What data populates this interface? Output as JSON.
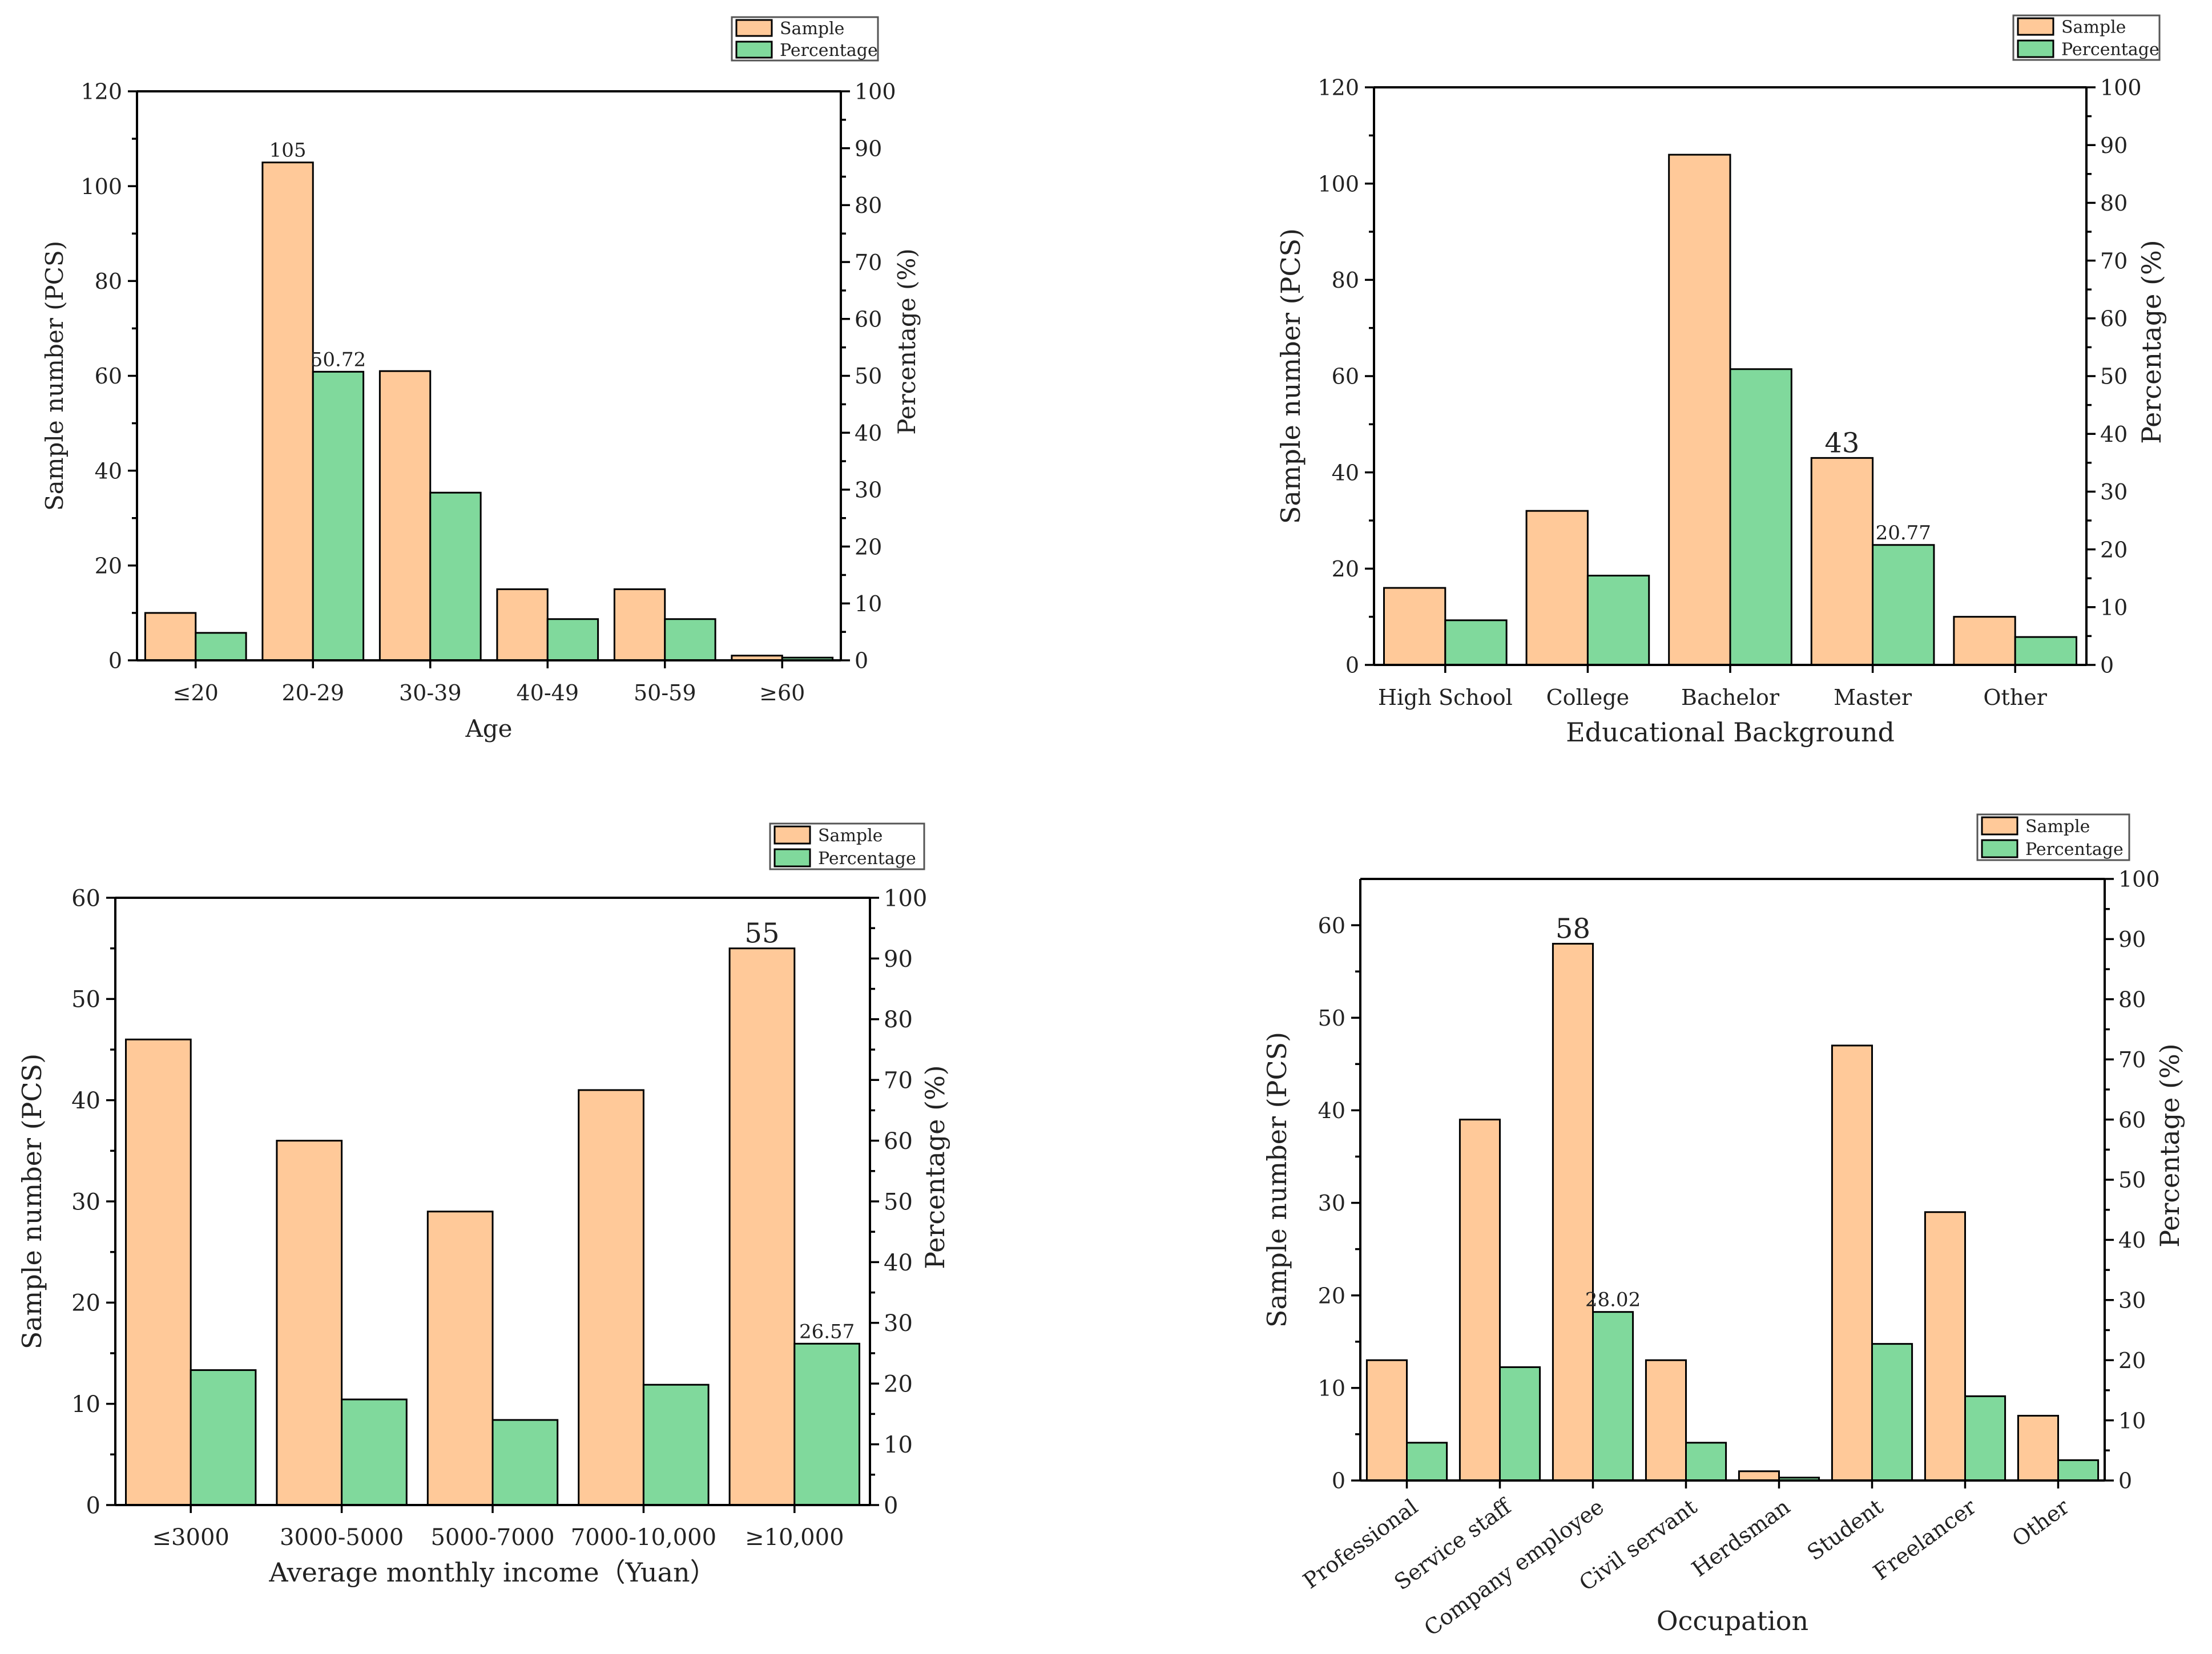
{
  "colors": {
    "sample": "#FFC999",
    "percentage": "#80D99C",
    "axis": "#000000"
  },
  "chart_data": [
    {
      "type": "bar",
      "title": "",
      "xlabel": "Age",
      "ylabel": "Sample number (PCS)",
      "y2label": "Percentage (%)",
      "categories": [
        "≤20",
        "20-29",
        "30-39",
        "40-49",
        "50-59",
        "≥60"
      ],
      "ylim": [
        0,
        120
      ],
      "y2lim": [
        0,
        100
      ],
      "yticks": [
        0,
        20,
        40,
        60,
        80,
        100,
        120
      ],
      "y2ticks": [
        0,
        10,
        20,
        30,
        40,
        50,
        60,
        70,
        80,
        90,
        100
      ],
      "series": [
        {
          "name": "Sample",
          "axis": "left",
          "values": [
            10,
            105,
            61,
            15,
            15,
            1
          ]
        },
        {
          "name": "Percentage",
          "axis": "right",
          "values": [
            4.83,
            50.72,
            29.47,
            7.25,
            7.25,
            0.48
          ]
        }
      ],
      "annotations": [
        {
          "series": 0,
          "index": 1,
          "text": "105"
        },
        {
          "series": 1,
          "index": 1,
          "text": "50.72"
        }
      ],
      "legend": {
        "position": "top-right",
        "entries": [
          "Sample",
          "Percentage"
        ]
      }
    },
    {
      "type": "bar",
      "title": "",
      "xlabel": "Educational Background",
      "ylabel": "Sample number (PCS)",
      "y2label": "Percentage (%)",
      "categories": [
        "High School",
        "College",
        "Bachelor",
        "Master",
        "Other"
      ],
      "ylim": [
        0,
        120
      ],
      "y2lim": [
        0,
        100
      ],
      "yticks": [
        0,
        20,
        40,
        60,
        80,
        100,
        120
      ],
      "y2ticks": [
        0,
        10,
        20,
        30,
        40,
        50,
        60,
        70,
        80,
        90,
        100
      ],
      "series": [
        {
          "name": "Sample",
          "axis": "left",
          "values": [
            16,
            32,
            106,
            43,
            10
          ]
        },
        {
          "name": "Percentage",
          "axis": "right",
          "values": [
            7.73,
            15.46,
            51.21,
            20.77,
            4.83
          ]
        }
      ],
      "annotations": [
        {
          "series": 0,
          "index": 3,
          "text": "43"
        },
        {
          "series": 1,
          "index": 3,
          "text": "20.77"
        }
      ],
      "legend": {
        "position": "top-right",
        "entries": [
          "Sample",
          "Percentage"
        ]
      }
    },
    {
      "type": "bar",
      "title": "",
      "xlabel": "Average monthly income（Yuan）",
      "ylabel": "Sample number (PCS)",
      "y2label": "Percentage (%)",
      "categories": [
        "≤3000",
        "3000-5000",
        "5000-7000",
        "7000-10,000",
        "≥10,000"
      ],
      "ylim": [
        0,
        60
      ],
      "y2lim": [
        0,
        100
      ],
      "yticks": [
        0,
        10,
        20,
        30,
        40,
        50,
        60
      ],
      "y2ticks": [
        0,
        10,
        20,
        30,
        40,
        50,
        60,
        70,
        80,
        90,
        100
      ],
      "series": [
        {
          "name": "Sample",
          "axis": "left",
          "values": [
            46,
            36,
            29,
            41,
            55
          ]
        },
        {
          "name": "Percentage",
          "axis": "right",
          "values": [
            22.22,
            17.39,
            14.01,
            19.81,
            26.57
          ]
        }
      ],
      "annotations": [
        {
          "series": 0,
          "index": 4,
          "text": "55"
        },
        {
          "series": 1,
          "index": 4,
          "text": "26.57"
        }
      ],
      "legend": {
        "position": "top-right",
        "entries": [
          "Sample",
          "Percentage"
        ]
      }
    },
    {
      "type": "bar",
      "title": "",
      "xlabel": "Occupation",
      "ylabel": "Sample number (PCS)",
      "y2label": "Percentage (%)",
      "categories": [
        "Professional",
        "Service staff",
        "Company employee",
        "Civil servant",
        "Herdsman",
        "Student",
        "Freelancer",
        "Other"
      ],
      "ylim": [
        0,
        65
      ],
      "y2lim": [
        0,
        100
      ],
      "yticks": [
        0,
        10,
        20,
        30,
        40,
        50,
        60
      ],
      "y2ticks": [
        0,
        10,
        20,
        30,
        40,
        50,
        60,
        70,
        80,
        90,
        100
      ],
      "series": [
        {
          "name": "Sample",
          "axis": "left",
          "values": [
            13,
            39,
            58,
            13,
            1,
            47,
            29,
            7
          ]
        },
        {
          "name": "Percentage",
          "axis": "right",
          "values": [
            6.28,
            18.84,
            28.02,
            6.28,
            0.48,
            22.71,
            14.01,
            3.38
          ]
        }
      ],
      "annotations": [
        {
          "series": 0,
          "index": 2,
          "text": "58"
        },
        {
          "series": 1,
          "index": 2,
          "text": "28.02"
        }
      ],
      "legend": {
        "position": "top-right",
        "entries": [
          "Sample",
          "Percentage"
        ]
      }
    }
  ]
}
